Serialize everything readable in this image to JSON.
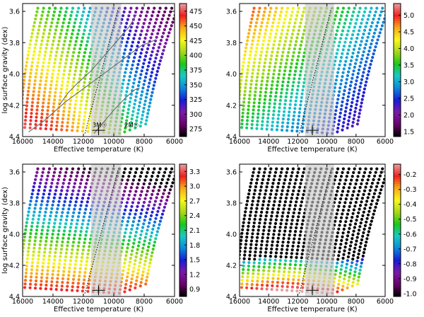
{
  "chart_data": [
    {
      "type": "scatter",
      "panel": "top-left",
      "xlabel": "Effective temperature (K)",
      "ylabel": "log surface gravity (dex)",
      "xlim": [
        16000,
        6000
      ],
      "ylim": [
        4.4,
        3.55
      ],
      "x_ticks": [
        "16000",
        "14000",
        "12000",
        "10000",
        "8000",
        "6000"
      ],
      "y_ticks": [
        "3.6",
        "3.8",
        "4.0",
        "4.2",
        "4.4"
      ],
      "shaded_band_teff": [
        11500,
        9500
      ],
      "colorbar": {
        "range": [
          262,
          488
        ],
        "ticks": [
          "275",
          "300",
          "325",
          "350",
          "375",
          "400",
          "425",
          "450",
          "475"
        ],
        "tick_values": [
          275,
          300,
          325,
          350,
          375,
          400,
          425,
          450,
          475
        ]
      },
      "color_field": "tl",
      "tracks": true,
      "annotations": [
        "3M☉",
        "2M☉"
      ],
      "error_bar": {
        "teff": 11000,
        "logg": 4.36
      }
    },
    {
      "type": "scatter",
      "panel": "top-right",
      "xlabel": "Effective temperature (K)",
      "ylabel": "",
      "xlim": [
        16000,
        6000
      ],
      "ylim": [
        4.4,
        3.55
      ],
      "x_ticks": [
        "16000",
        "14000",
        "12000",
        "10000",
        "8000",
        "6000"
      ],
      "y_ticks": [
        "3.6",
        "3.8",
        "4.0",
        "4.2",
        "4.4"
      ],
      "shaded_band_teff": [
        11500,
        9500
      ],
      "colorbar": {
        "range": [
          1.35,
          5.35
        ],
        "ticks": [
          "1.5",
          "2.0",
          "2.5",
          "3.0",
          "3.5",
          "4.0",
          "4.5",
          "5.0"
        ],
        "tick_values": [
          1.5,
          2.0,
          2.5,
          3.0,
          3.5,
          4.0,
          4.5,
          5.0
        ]
      },
      "color_field": "tr",
      "tracks": false,
      "annotations": [],
      "error_bar": {
        "teff": 11000,
        "logg": 4.36
      }
    },
    {
      "type": "scatter",
      "panel": "bottom-left",
      "xlabel": "Effective temperature (K)",
      "ylabel": "log surface gravity (dex)",
      "xlim": [
        16000,
        6000
      ],
      "ylim": [
        4.4,
        3.55
      ],
      "x_ticks": [
        "16000",
        "14000",
        "12000",
        "10000",
        "8000",
        "6000"
      ],
      "y_ticks": [
        "3.6",
        "3.8",
        "4.0",
        "4.2",
        "4.4"
      ],
      "shaded_band_teff": [
        11500,
        9500
      ],
      "colorbar": {
        "range": [
          0.75,
          3.45
        ],
        "ticks": [
          "0.9",
          "1.2",
          "1.5",
          "1.8",
          "2.1",
          "2.4",
          "2.7",
          "3.0",
          "3.3"
        ],
        "tick_values": [
          0.9,
          1.2,
          1.5,
          1.8,
          2.1,
          2.4,
          2.7,
          3.0,
          3.3
        ]
      },
      "color_field": "bl",
      "tracks": false,
      "annotations": [],
      "error_bar": {
        "teff": 11000,
        "logg": 4.36
      }
    },
    {
      "type": "scatter",
      "panel": "bottom-right",
      "xlabel": "Effective temperature (K)",
      "ylabel": "",
      "xlim": [
        16000,
        6000
      ],
      "ylim": [
        4.4,
        3.55
      ],
      "x_ticks": [
        "16000",
        "14000",
        "12000",
        "10000",
        "8000",
        "6000"
      ],
      "y_ticks": [
        "3.6",
        "3.8",
        "4.0",
        "4.2",
        "4.4"
      ],
      "shaded_band_teff": [
        11500,
        9500
      ],
      "colorbar": {
        "range": [
          -1.02,
          -0.13
        ],
        "ticks": [
          "-0.2",
          "-0.3",
          "-0.4",
          "-0.5",
          "-0.6",
          "-0.7",
          "-0.8",
          "-0.9",
          "-1.0"
        ],
        "tick_values": [
          -0.2,
          -0.3,
          -0.4,
          -0.5,
          -0.6,
          -0.7,
          -0.8,
          -0.9,
          -1.0
        ]
      },
      "color_field": "br",
      "tracks": false,
      "annotations": [],
      "error_bar": {
        "teff": 11000,
        "logg": 4.36
      }
    }
  ],
  "colormap": [
    "#000000",
    "#6a006a",
    "#7a1aa8",
    "#1a1ad8",
    "#0a8ad8",
    "#1ac8c8",
    "#1ac81a",
    "#a8d81a",
    "#f8f81a",
    "#f8a81a",
    "#f02020",
    "#e8a0a0"
  ]
}
